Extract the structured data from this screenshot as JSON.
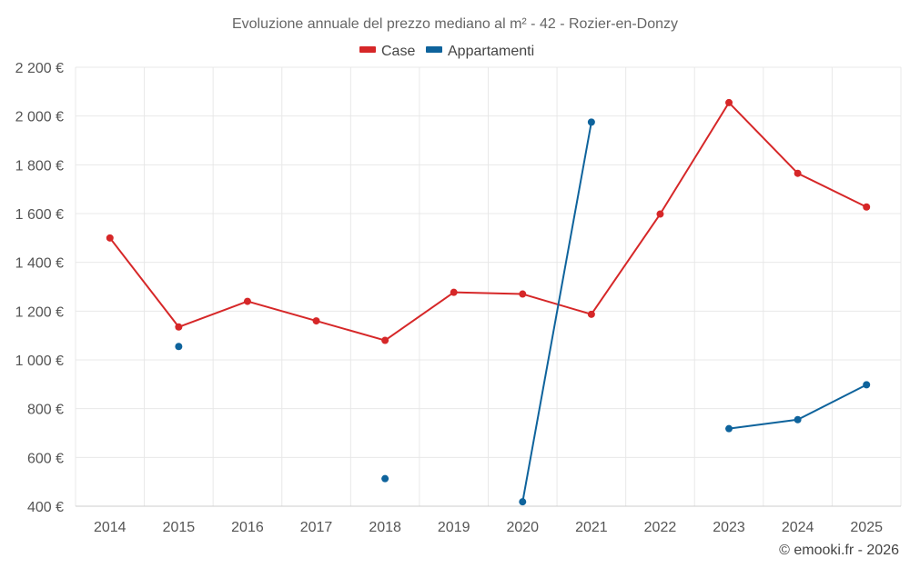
{
  "chart_data": {
    "type": "line",
    "title": "Evoluzione annuale del prezzo mediano al m² - 42 - Rozier-en-Donzy",
    "categories": [
      "2014",
      "2015",
      "2016",
      "2017",
      "2018",
      "2019",
      "2020",
      "2021",
      "2022",
      "2023",
      "2024",
      "2025"
    ],
    "ylim": [
      400,
      2200
    ],
    "yticks": [
      400,
      600,
      800,
      1000,
      1200,
      1400,
      1600,
      1800,
      2000,
      2200
    ],
    "ytick_labels": [
      "400 €",
      "600 €",
      "800 €",
      "1 000 €",
      "1 200 €",
      "1 400 €",
      "1 600 €",
      "1 800 €",
      "2 000 €",
      "2 200 €"
    ],
    "xlabel": "",
    "ylabel": "",
    "legend_position": "top-center",
    "series": [
      {
        "name": "Case",
        "color": "#d62728",
        "values": [
          1500,
          1135,
          1240,
          1160,
          1080,
          1277,
          1270,
          1187,
          1598,
          2055,
          1765,
          1627
        ]
      },
      {
        "name": "Appartamenti",
        "color": "#0e639c",
        "values": [
          null,
          1055,
          null,
          null,
          513,
          null,
          418,
          1975,
          null,
          718,
          755,
          898
        ]
      }
    ],
    "credit": "© emooki.fr - 2026"
  }
}
